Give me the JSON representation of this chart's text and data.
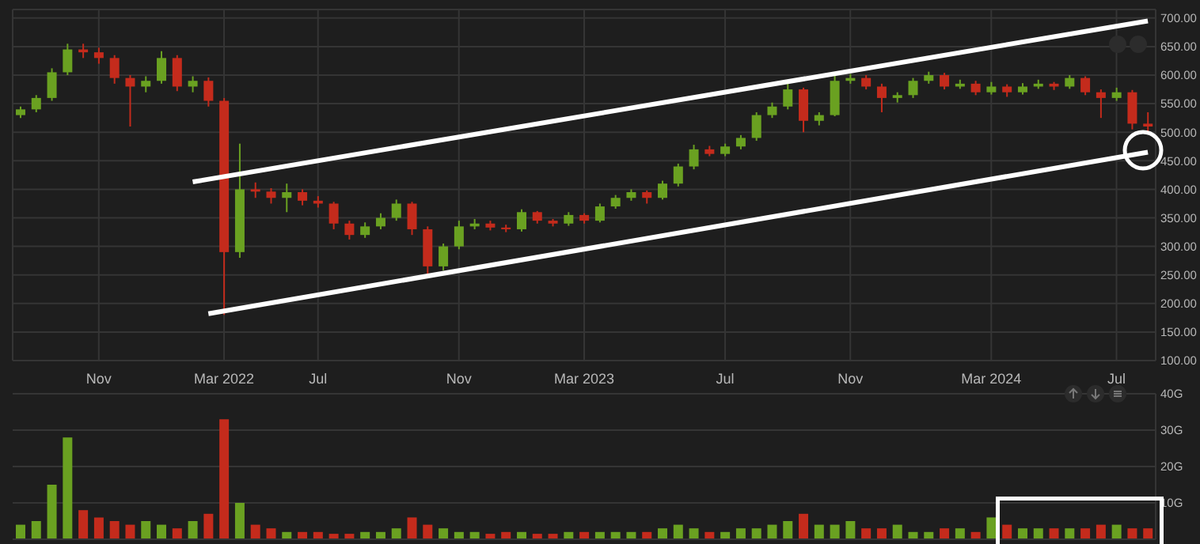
{
  "chart_data": [
    {
      "type": "candlestick",
      "categories": [
        null,
        null,
        null,
        null,
        null,
        "Nov",
        null,
        null,
        null,
        null,
        null,
        null,
        null,
        "Mar 2022",
        null,
        null,
        null,
        null,
        null,
        "Jul",
        null,
        null,
        null,
        null,
        null,
        null,
        null,
        null,
        "Nov",
        null,
        null,
        null,
        null,
        null,
        null,
        null,
        "Mar 2023",
        null,
        null,
        null,
        null,
        null,
        null,
        null,
        null,
        "Jul",
        null,
        null,
        null,
        null,
        null,
        null,
        null,
        "Nov",
        null,
        null,
        null,
        null,
        null,
        null,
        null,
        null,
        "Mar 2024",
        null,
        null,
        null,
        null,
        null,
        null,
        null,
        "Jul",
        null,
        null
      ],
      "ohlc": [
        [
          530,
          545,
          525,
          540
        ],
        [
          540,
          565,
          535,
          560
        ],
        [
          560,
          612,
          555,
          605
        ],
        [
          605,
          655,
          600,
          645
        ],
        [
          645,
          655,
          630,
          640
        ],
        [
          640,
          648,
          620,
          630
        ],
        [
          630,
          635,
          585,
          595
        ],
        [
          595,
          600,
          510,
          580
        ],
        [
          580,
          598,
          570,
          590
        ],
        [
          590,
          642,
          585,
          630
        ],
        [
          630,
          635,
          572,
          580
        ],
        [
          580,
          598,
          570,
          590
        ],
        [
          590,
          596,
          545,
          555
        ],
        [
          555,
          560,
          180,
          290
        ],
        [
          290,
          480,
          280,
          400
        ],
        [
          400,
          412,
          385,
          396
        ],
        [
          396,
          402,
          375,
          385
        ],
        [
          385,
          410,
          360,
          395
        ],
        [
          395,
          400,
          372,
          380
        ],
        [
          380,
          388,
          368,
          375
        ],
        [
          375,
          378,
          330,
          340
        ],
        [
          340,
          345,
          312,
          320
        ],
        [
          320,
          342,
          315,
          335
        ],
        [
          335,
          358,
          330,
          350
        ],
        [
          350,
          382,
          345,
          375
        ],
        [
          375,
          378,
          320,
          330
        ],
        [
          330,
          335,
          250,
          265
        ],
        [
          265,
          305,
          258,
          300
        ],
        [
          300,
          345,
          295,
          335
        ],
        [
          335,
          348,
          330,
          340
        ],
        [
          340,
          345,
          328,
          333
        ],
        [
          333,
          338,
          325,
          330
        ],
        [
          330,
          365,
          326,
          360
        ],
        [
          360,
          362,
          340,
          345
        ],
        [
          345,
          348,
          335,
          340
        ],
        [
          340,
          360,
          336,
          355
        ],
        [
          355,
          358,
          340,
          345
        ],
        [
          345,
          375,
          342,
          370
        ],
        [
          370,
          390,
          366,
          385
        ],
        [
          385,
          400,
          380,
          395
        ],
        [
          395,
          398,
          375,
          385
        ],
        [
          385,
          415,
          382,
          410
        ],
        [
          410,
          445,
          405,
          440
        ],
        [
          440,
          478,
          435,
          470
        ],
        [
          470,
          476,
          458,
          462
        ],
        [
          462,
          480,
          458,
          475
        ],
        [
          475,
          495,
          470,
          490
        ],
        [
          490,
          535,
          485,
          530
        ],
        [
          530,
          552,
          525,
          545
        ],
        [
          545,
          585,
          540,
          575
        ],
        [
          575,
          578,
          500,
          520
        ],
        [
          520,
          535,
          512,
          530
        ],
        [
          530,
          605,
          528,
          590
        ],
        [
          590,
          602,
          585,
          595
        ],
        [
          595,
          600,
          575,
          580
        ],
        [
          580,
          585,
          535,
          560
        ],
        [
          560,
          570,
          552,
          565
        ],
        [
          565,
          595,
          560,
          590
        ],
        [
          590,
          606,
          585,
          600
        ],
        [
          600,
          604,
          575,
          580
        ],
        [
          580,
          592,
          576,
          585
        ],
        [
          585,
          590,
          565,
          570
        ],
        [
          570,
          588,
          566,
          580
        ],
        [
          580,
          584,
          562,
          570
        ],
        [
          570,
          586,
          566,
          580
        ],
        [
          580,
          592,
          576,
          585
        ],
        [
          585,
          588,
          574,
          580
        ],
        [
          580,
          600,
          576,
          595
        ],
        [
          595,
          598,
          565,
          570
        ],
        [
          570,
          575,
          525,
          560
        ],
        [
          560,
          578,
          555,
          570
        ],
        [
          570,
          574,
          505,
          515
        ],
        [
          515,
          535,
          500,
          510
        ]
      ],
      "colors": [
        "#6aa121",
        "#6aa121",
        "#6aa121",
        "#6aa121",
        "#c42b1c",
        "#c42b1c",
        "#c42b1c",
        "#c42b1c",
        "#6aa121",
        "#6aa121",
        "#c42b1c",
        "#6aa121",
        "#c42b1c",
        "#c42b1c",
        "#6aa121",
        "#c42b1c",
        "#c42b1c",
        "#6aa121",
        "#c42b1c",
        "#c42b1c",
        "#c42b1c",
        "#c42b1c",
        "#6aa121",
        "#6aa121",
        "#6aa121",
        "#c42b1c",
        "#c42b1c",
        "#6aa121",
        "#6aa121",
        "#6aa121",
        "#c42b1c",
        "#c42b1c",
        "#6aa121",
        "#c42b1c",
        "#c42b1c",
        "#6aa121",
        "#c42b1c",
        "#6aa121",
        "#6aa121",
        "#6aa121",
        "#c42b1c",
        "#6aa121",
        "#6aa121",
        "#6aa121",
        "#c42b1c",
        "#6aa121",
        "#6aa121",
        "#6aa121",
        "#6aa121",
        "#6aa121",
        "#c42b1c",
        "#6aa121",
        "#6aa121",
        "#6aa121",
        "#c42b1c",
        "#c42b1c",
        "#6aa121",
        "#6aa121",
        "#6aa121",
        "#c42b1c",
        "#6aa121",
        "#c42b1c",
        "#6aa121",
        "#c42b1c",
        "#6aa121",
        "#6aa121",
        "#c42b1c",
        "#6aa121",
        "#c42b1c",
        "#c42b1c",
        "#6aa121",
        "#c42b1c",
        "#c42b1c"
      ],
      "series": [
        {
          "type": "line",
          "color": "#ffffff",
          "values": [
            null,
            null,
            null,
            null,
            null,
            null,
            null,
            null,
            null,
            null,
            null,
            413,
            null,
            null,
            null,
            null,
            null,
            null,
            null,
            null,
            null,
            null,
            null,
            null,
            null,
            null,
            null,
            null,
            null,
            null,
            null,
            null,
            null,
            null,
            null,
            null,
            null,
            null,
            null,
            null,
            null,
            null,
            null,
            null,
            null,
            null,
            null,
            null,
            null,
            null,
            null,
            null,
            null,
            null,
            null,
            null,
            null,
            null,
            null,
            null,
            null,
            null,
            null,
            null,
            null,
            null,
            null,
            null,
            null,
            null,
            null,
            null,
            695
          ]
        },
        {
          "type": "line",
          "color": "#ffffff",
          "values": [
            null,
            null,
            null,
            null,
            null,
            null,
            null,
            null,
            null,
            null,
            null,
            null,
            182,
            null,
            null,
            null,
            null,
            null,
            null,
            null,
            null,
            null,
            null,
            null,
            null,
            null,
            null,
            null,
            null,
            null,
            null,
            null,
            null,
            null,
            null,
            null,
            null,
            null,
            null,
            null,
            null,
            null,
            null,
            null,
            null,
            null,
            null,
            null,
            null,
            null,
            null,
            null,
            null,
            null,
            null,
            null,
            null,
            null,
            null,
            null,
            null,
            null,
            null,
            null,
            null,
            null,
            null,
            null,
            null,
            null,
            null,
            null,
            465
          ]
        }
      ],
      "ylim": [
        100,
        715
      ],
      "yticks": [
        {
          "value": 100,
          "label": "100.00"
        },
        {
          "value": 150,
          "label": "150.00"
        },
        {
          "value": 200,
          "label": "200.00"
        },
        {
          "value": 250,
          "label": "250.00"
        },
        {
          "value": 300,
          "label": "300.00"
        },
        {
          "value": 350,
          "label": "350.00"
        },
        {
          "value": 400,
          "label": "400.00"
        },
        {
          "value": 450,
          "label": "450.00"
        },
        {
          "value": 500,
          "label": "500.00"
        },
        {
          "value": 550,
          "label": "550.00"
        },
        {
          "value": 600,
          "label": "600.00"
        },
        {
          "value": 650,
          "label": "650.00"
        },
        {
          "value": 700,
          "label": "700.00"
        }
      ],
      "grid": true
    },
    {
      "type": "bar",
      "values": [
        4,
        5,
        15,
        28,
        8,
        6,
        5,
        4,
        5,
        4,
        3,
        5,
        7,
        33,
        10,
        4,
        3,
        2,
        2,
        2,
        1.5,
        1.5,
        2,
        2,
        3,
        6,
        4,
        3,
        2,
        2,
        1.5,
        2,
        2,
        1.5,
        1.5,
        2,
        2,
        2,
        2,
        2,
        2,
        3,
        4,
        3,
        2,
        2,
        3,
        3,
        4,
        5,
        7,
        4,
        4,
        5,
        3,
        3,
        4,
        2,
        2,
        3,
        3,
        2,
        6,
        4,
        3,
        3,
        3,
        3,
        3,
        4,
        4,
        3,
        3
      ],
      "colors": [
        "#6aa121",
        "#6aa121",
        "#6aa121",
        "#6aa121",
        "#c42b1c",
        "#c42b1c",
        "#c42b1c",
        "#c42b1c",
        "#6aa121",
        "#6aa121",
        "#c42b1c",
        "#6aa121",
        "#c42b1c",
        "#c42b1c",
        "#6aa121",
        "#c42b1c",
        "#c42b1c",
        "#6aa121",
        "#c42b1c",
        "#c42b1c",
        "#c42b1c",
        "#c42b1c",
        "#6aa121",
        "#6aa121",
        "#6aa121",
        "#c42b1c",
        "#c42b1c",
        "#6aa121",
        "#6aa121",
        "#6aa121",
        "#c42b1c",
        "#c42b1c",
        "#6aa121",
        "#c42b1c",
        "#c42b1c",
        "#6aa121",
        "#c42b1c",
        "#6aa121",
        "#6aa121",
        "#6aa121",
        "#c42b1c",
        "#6aa121",
        "#6aa121",
        "#6aa121",
        "#c42b1c",
        "#6aa121",
        "#6aa121",
        "#6aa121",
        "#6aa121",
        "#6aa121",
        "#c42b1c",
        "#6aa121",
        "#6aa121",
        "#6aa121",
        "#c42b1c",
        "#c42b1c",
        "#6aa121",
        "#6aa121",
        "#6aa121",
        "#c42b1c",
        "#6aa121",
        "#c42b1c",
        "#6aa121",
        "#c42b1c",
        "#6aa121",
        "#6aa121",
        "#c42b1c",
        "#6aa121",
        "#c42b1c",
        "#c42b1c",
        "#6aa121",
        "#c42b1c",
        "#c42b1c"
      ],
      "ylim": [
        0,
        40
      ],
      "yticks": [
        {
          "value": 0,
          "label": null
        },
        {
          "value": 10,
          "label": "10G"
        },
        {
          "value": 20,
          "label": "20G"
        },
        {
          "value": 30,
          "label": "30G"
        },
        {
          "value": 40,
          "label": "40G"
        }
      ],
      "tick_labels": "y",
      "grid": "y"
    }
  ]
}
